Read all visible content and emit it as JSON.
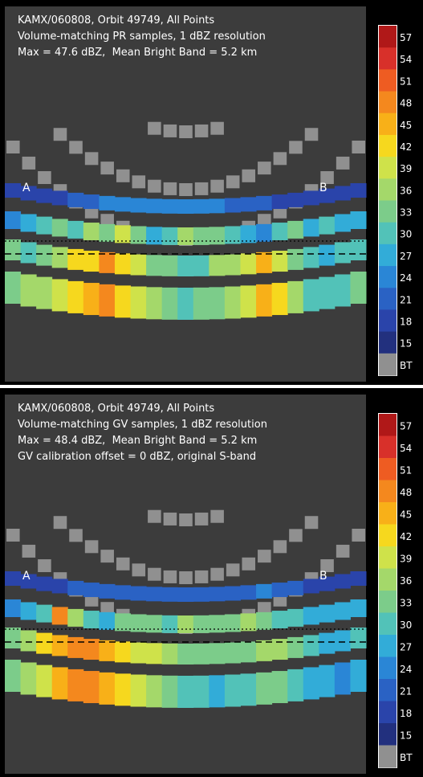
{
  "panels": [
    {
      "id": "pr",
      "line1": "KAMX/060808, Orbit 49749, All Points",
      "line2": "Volume-matching PR samples, 1 dBZ resolution",
      "line3": "Max = 47.6 dBZ,  Mean Bright Band = 5.2 km",
      "line4": "",
      "marker_a": "A",
      "marker_b": "B"
    },
    {
      "id": "gv",
      "line1": "KAMX/060808, Orbit 49749, All Points",
      "line2": "Volume-matching GV samples, 1 dBZ resolution",
      "line3": "Max = 48.4 dBZ,  Mean Bright Band = 5.2 km",
      "line4": "GV calibration offset = 0 dBZ, original S-band",
      "marker_a": "A",
      "marker_b": "B"
    }
  ],
  "colorbar": {
    "ticks": [
      "57",
      "54",
      "51",
      "48",
      "45",
      "42",
      "39",
      "36",
      "33",
      "30",
      "27",
      "24",
      "21",
      "18",
      "15",
      "BT"
    ],
    "colors": [
      "#b01818",
      "#d8302a",
      "#ee5c22",
      "#f4881e",
      "#f8b018",
      "#f6d81e",
      "#cfe24a",
      "#a4d86a",
      "#7ccc8a",
      "#52c2b8",
      "#32acd8",
      "#2a86d6",
      "#2a62c4",
      "#2a44aa",
      "#22307e",
      "#909090"
    ]
  },
  "chart_data": [
    {
      "type": "heatmap",
      "title": "KAMX/060808, Orbit 49749, All Points — Volume-matching PR samples, 1 dBZ resolution",
      "max_dbz": 47.6,
      "mean_bright_band_km": 5.2,
      "colorbar_ticks": [
        57,
        54,
        51,
        48,
        45,
        42,
        39,
        36,
        33,
        30,
        27,
        24,
        21,
        18,
        15
      ],
      "colorbar_bottom_label": "BT",
      "section_endpoints": [
        "A",
        "B"
      ],
      "columns": 23,
      "layers": [
        [
          16,
          16,
          16,
          18,
          19,
          20,
          22,
          22,
          22,
          22,
          23,
          22,
          22,
          22,
          21,
          20,
          19,
          18,
          17,
          16,
          16,
          16,
          16
        ],
        [
          24,
          26,
          28,
          33,
          29,
          34,
          31,
          38,
          33,
          27,
          30,
          35,
          32,
          31,
          29,
          27,
          24,
          28,
          31,
          26,
          30,
          27,
          26
        ],
        [
          31,
          28,
          33,
          36,
          40,
          42,
          46,
          40,
          37,
          33,
          31,
          29,
          30,
          34,
          36,
          38,
          44,
          39,
          33,
          29,
          27,
          28,
          30
        ],
        [
          32,
          34,
          35,
          37,
          41,
          44,
          47,
          41,
          38,
          34,
          32,
          30,
          31,
          33,
          35,
          39,
          45,
          40,
          34,
          30,
          28,
          29,
          31
        ]
      ]
    },
    {
      "type": "heatmap",
      "title": "KAMX/060808, Orbit 49749, All Points — Volume-matching GV samples, 1 dBZ resolution",
      "max_dbz": 48.4,
      "mean_bright_band_km": 5.2,
      "gv_calibration_offset_dbz": 0,
      "colorbar_ticks": [
        57,
        54,
        51,
        48,
        45,
        42,
        39,
        36,
        33,
        30,
        27,
        24,
        21,
        18,
        15
      ],
      "colorbar_bottom_label": "BT",
      "section_endpoints": [
        "A",
        "B"
      ],
      "columns": 23,
      "layers": [
        [
          16,
          16,
          16,
          18,
          19,
          20,
          20,
          20,
          21,
          21,
          21,
          20,
          20,
          20,
          21,
          21,
          22,
          21,
          19,
          17,
          16,
          16,
          16
        ],
        [
          24,
          25,
          30,
          46,
          34,
          30,
          27,
          33,
          31,
          33,
          30,
          34,
          32,
          33,
          31,
          36,
          33,
          30,
          28,
          27,
          26,
          25,
          27
        ],
        [
          33,
          36,
          41,
          45,
          47,
          46,
          44,
          41,
          39,
          37,
          35,
          33,
          32,
          31,
          32,
          33,
          35,
          34,
          31,
          28,
          27,
          26,
          28
        ],
        [
          31,
          34,
          39,
          44,
          48,
          46,
          43,
          40,
          37,
          34,
          31,
          29,
          28,
          27,
          28,
          30,
          33,
          31,
          29,
          27,
          25,
          24,
          26
        ]
      ]
    }
  ]
}
